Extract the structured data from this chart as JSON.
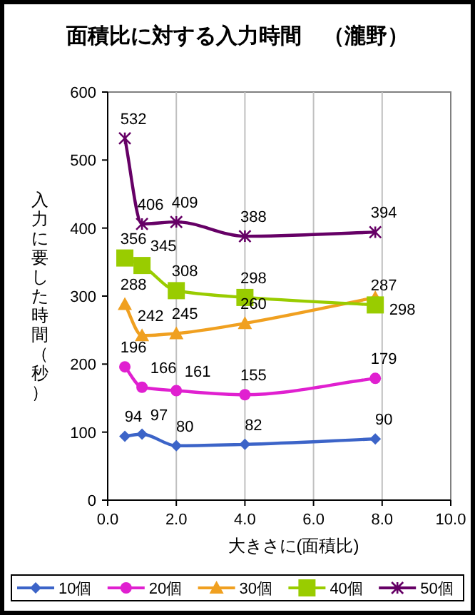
{
  "chart_data": {
    "type": "line",
    "title": "面積比に対する入力時間　（瀧野）",
    "xlabel": "大きさに(面積比)",
    "ylabel": "入力に要した時間（秒）",
    "x": [
      0.5,
      1,
      2,
      4,
      7.8
    ],
    "series": [
      {
        "name": "10個",
        "color": "#3c64c8",
        "marker": "diamond",
        "values": [
          94,
          97,
          80,
          82,
          90
        ]
      },
      {
        "name": "20個",
        "color": "#e020d0",
        "marker": "circle",
        "values": [
          196,
          166,
          161,
          155,
          179
        ]
      },
      {
        "name": "30個",
        "color": "#f0a020",
        "marker": "triangle",
        "values": [
          288,
          242,
          245,
          260,
          298
        ]
      },
      {
        "name": "40個",
        "color": "#99cc00",
        "marker": "square",
        "values": [
          356,
          345,
          308,
          298,
          287
        ]
      },
      {
        "name": "50個",
        "color": "#660066",
        "marker": "cross",
        "values": [
          532,
          406,
          409,
          388,
          394
        ]
      }
    ],
    "xlim": [
      0,
      10
    ],
    "xticks": [
      {
        "value": 0,
        "label": "0.0"
      },
      {
        "value": 2,
        "label": "2.0"
      },
      {
        "value": 4,
        "label": "4.0"
      },
      {
        "value": 6,
        "label": "6.0"
      },
      {
        "value": 8,
        "label": "8.0"
      },
      {
        "value": 10,
        "label": "10.0"
      }
    ],
    "ylim": [
      0,
      600
    ],
    "yticks": [
      0,
      100,
      200,
      300,
      400,
      500,
      600
    ],
    "grid": "x",
    "legend": "bottom",
    "data_labels": true,
    "line_style": "solid"
  }
}
